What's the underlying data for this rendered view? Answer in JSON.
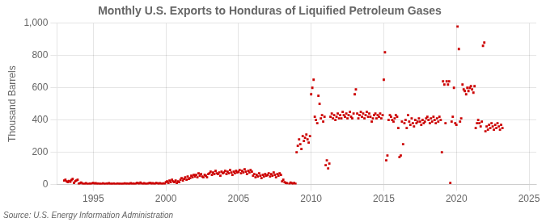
{
  "chart_data": {
    "type": "scatter",
    "title": "Monthly U.S. Exports to Honduras of Liquified Petroleum Gases",
    "ylabel": "Thousand Barrels",
    "source": "Source: U.S. Energy Information Administration",
    "xlim": [
      1992.5,
      2025.5
    ],
    "ylim": [
      0,
      1000
    ],
    "xticks": [
      1995,
      2000,
      2005,
      2010,
      2015,
      2020,
      2025
    ],
    "yticks": [
      0,
      200,
      400,
      600,
      800,
      {
        "value": 1000,
        "label": "1,000"
      }
    ],
    "grid": true,
    "color": "#cc0000",
    "marker": "square",
    "x": [
      1993.0,
      1993.08,
      1993.17,
      1993.25,
      1993.33,
      1993.42,
      1993.5,
      1993.58,
      1993.67,
      1993.75,
      1993.83,
      1993.92,
      1994.0,
      1994.08,
      1994.17,
      1994.25,
      1994.33,
      1994.42,
      1994.5,
      1994.58,
      1994.67,
      1994.75,
      1994.83,
      1994.92,
      1995.0,
      1995.08,
      1995.17,
      1995.25,
      1995.33,
      1995.42,
      1995.5,
      1995.58,
      1995.67,
      1995.75,
      1995.83,
      1995.92,
      1996.0,
      1996.08,
      1996.17,
      1996.25,
      1996.33,
      1996.42,
      1996.5,
      1996.58,
      1996.67,
      1996.75,
      1996.83,
      1996.92,
      1997.0,
      1997.08,
      1997.17,
      1997.25,
      1997.33,
      1997.42,
      1997.5,
      1997.58,
      1997.67,
      1997.75,
      1997.83,
      1997.92,
      1998.0,
      1998.08,
      1998.17,
      1998.25,
      1998.33,
      1998.42,
      1998.5,
      1998.58,
      1998.67,
      1998.75,
      1998.83,
      1998.92,
      1999.0,
      1999.08,
      1999.17,
      1999.25,
      1999.33,
      1999.42,
      1999.5,
      1999.58,
      1999.67,
      1999.75,
      1999.83,
      1999.92,
      2000.0,
      2000.08,
      2000.17,
      2000.25,
      2000.33,
      2000.42,
      2000.5,
      2000.58,
      2000.67,
      2000.75,
      2000.83,
      2000.92,
      2001.0,
      2001.08,
      2001.17,
      2001.25,
      2001.33,
      2001.42,
      2001.5,
      2001.58,
      2001.67,
      2001.75,
      2001.83,
      2001.92,
      2002.0,
      2002.08,
      2002.17,
      2002.25,
      2002.33,
      2002.42,
      2002.5,
      2002.58,
      2002.67,
      2002.75,
      2002.83,
      2002.92,
      2003.0,
      2003.08,
      2003.17,
      2003.25,
      2003.33,
      2003.42,
      2003.5,
      2003.58,
      2003.67,
      2003.75,
      2003.83,
      2003.92,
      2004.0,
      2004.08,
      2004.17,
      2004.25,
      2004.33,
      2004.42,
      2004.5,
      2004.58,
      2004.67,
      2004.75,
      2004.83,
      2004.92,
      2005.0,
      2005.08,
      2005.17,
      2005.25,
      2005.33,
      2005.42,
      2005.5,
      2005.58,
      2005.67,
      2005.75,
      2005.83,
      2005.92,
      2006.0,
      2006.08,
      2006.17,
      2006.25,
      2006.33,
      2006.42,
      2006.5,
      2006.58,
      2006.67,
      2006.75,
      2006.83,
      2006.92,
      2007.0,
      2007.08,
      2007.17,
      2007.25,
      2007.33,
      2007.42,
      2007.5,
      2007.58,
      2007.67,
      2007.75,
      2007.83,
      2007.92,
      2008.0,
      2008.08,
      2008.17,
      2008.25,
      2008.33,
      2008.5,
      2008.58,
      2008.67,
      2008.75,
      2008.83,
      2008.92,
      2009.0,
      2009.08,
      2009.17,
      2009.25,
      2009.33,
      2009.42,
      2009.5,
      2009.58,
      2009.67,
      2009.75,
      2009.83,
      2009.92,
      2010.0,
      2010.08,
      2010.17,
      2010.25,
      2010.33,
      2010.42,
      2010.5,
      2010.58,
      2010.67,
      2010.75,
      2010.83,
      2010.92,
      2011.0,
      2011.08,
      2011.17,
      2011.25,
      2011.33,
      2011.42,
      2011.5,
      2011.58,
      2011.67,
      2011.75,
      2011.83,
      2011.92,
      2012.0,
      2012.08,
      2012.17,
      2012.25,
      2012.33,
      2012.42,
      2012.5,
      2012.58,
      2012.67,
      2012.75,
      2012.83,
      2012.92,
      2013.0,
      2013.08,
      2013.17,
      2013.25,
      2013.33,
      2013.42,
      2013.5,
      2013.58,
      2013.67,
      2013.75,
      2013.83,
      2013.92,
      2014.0,
      2014.08,
      2014.17,
      2014.25,
      2014.33,
      2014.42,
      2014.5,
      2014.58,
      2014.67,
      2014.75,
      2014.83,
      2014.92,
      2015.0,
      2015.08,
      2015.17,
      2015.25,
      2015.33,
      2015.42,
      2015.5,
      2015.58,
      2015.67,
      2015.75,
      2015.83,
      2015.92,
      2016.0,
      2016.08,
      2016.17,
      2016.25,
      2016.33,
      2016.42,
      2016.5,
      2016.58,
      2016.67,
      2016.75,
      2016.83,
      2016.92,
      2017.0,
      2017.08,
      2017.17,
      2017.25,
      2017.33,
      2017.42,
      2017.5,
      2017.58,
      2017.67,
      2017.75,
      2017.83,
      2017.92,
      2018.0,
      2018.08,
      2018.17,
      2018.25,
      2018.33,
      2018.42,
      2018.5,
      2018.58,
      2018.67,
      2018.75,
      2018.83,
      2018.92,
      2019.0,
      2019.08,
      2019.17,
      2019.25,
      2019.33,
      2019.42,
      2019.5,
      2019.58,
      2019.67,
      2019.75,
      2019.83,
      2019.92,
      2020.0,
      2020.08,
      2020.17,
      2020.25,
      2020.33,
      2020.42,
      2020.5,
      2020.58,
      2020.67,
      2020.75,
      2020.83,
      2020.92,
      2021.0,
      2021.08,
      2021.17,
      2021.25,
      2021.33,
      2021.42,
      2021.5,
      2021.58,
      2021.67,
      2021.75,
      2021.83,
      2021.92,
      2022.0,
      2022.08,
      2022.17,
      2022.25,
      2022.33,
      2022.42,
      2022.5,
      2022.58,
      2022.67,
      2022.75,
      2022.83,
      2022.92,
      2023.0,
      2023.08,
      2023.17
    ],
    "values": [
      25,
      30,
      20,
      15,
      22,
      18,
      28,
      35,
      10,
      20,
      25,
      30,
      5,
      8,
      12,
      6,
      3,
      5,
      8,
      4,
      2,
      6,
      4,
      7,
      10,
      5,
      8,
      3,
      6,
      4,
      5,
      2,
      7,
      4,
      3,
      6,
      5,
      8,
      3,
      5,
      4,
      6,
      2,
      4,
      6,
      3,
      5,
      4,
      3,
      5,
      7,
      4,
      6,
      3,
      5,
      8,
      4,
      6,
      3,
      5,
      10,
      8,
      5,
      12,
      6,
      4,
      8,
      5,
      3,
      6,
      8,
      10,
      5,
      8,
      6,
      4,
      10,
      7,
      5,
      8,
      6,
      4,
      7,
      5,
      15,
      20,
      10,
      25,
      15,
      30,
      20,
      15,
      25,
      10,
      20,
      15,
      30,
      40,
      25,
      35,
      45,
      30,
      50,
      35,
      40,
      55,
      45,
      60,
      50,
      60,
      45,
      70,
      55,
      65,
      50,
      45,
      60,
      55,
      45,
      65,
      70,
      80,
      60,
      75,
      65,
      85,
      70,
      65,
      75,
      55,
      80,
      70,
      75,
      85,
      65,
      80,
      70,
      90,
      75,
      60,
      80,
      70,
      85,
      75,
      80,
      90,
      70,
      85,
      75,
      95,
      80,
      65,
      85,
      75,
      90,
      80,
      55,
      65,
      45,
      60,
      50,
      70,
      55,
      40,
      60,
      50,
      65,
      55,
      60,
      70,
      50,
      65,
      55,
      75,
      60,
      45,
      65,
      55,
      70,
      60,
      20,
      30,
      15,
      10,
      8,
      5,
      12,
      8,
      5,
      10,
      5,
      200,
      240,
      280,
      250,
      220,
      300,
      270,
      290,
      310,
      280,
      260,
      300,
      560,
      600,
      650,
      420,
      400,
      380,
      550,
      500,
      410,
      430,
      390,
      420,
      120,
      150,
      100,
      130,
      420,
      440,
      410,
      430,
      400,
      420,
      440,
      410,
      430,
      410,
      450,
      430,
      420,
      440,
      410,
      430,
      450,
      420,
      410,
      440,
      560,
      590,
      440,
      410,
      430,
      450,
      420,
      440,
      410,
      430,
      450,
      420,
      440,
      420,
      390,
      410,
      430,
      440,
      410,
      430,
      420,
      440,
      410,
      430,
      650,
      820,
      150,
      180,
      400,
      430,
      420,
      400,
      390,
      410,
      430,
      420,
      350,
      170,
      180,
      390,
      250,
      380,
      400,
      350,
      430,
      390,
      370,
      410,
      380,
      360,
      400,
      380,
      390,
      410,
      390,
      370,
      400,
      380,
      390,
      410,
      420,
      400,
      380,
      410,
      390,
      420,
      400,
      380,
      410,
      390,
      420,
      400,
      200,
      640,
      620,
      380,
      640,
      620,
      640,
      10,
      390,
      420,
      600,
      380,
      370,
      980,
      840,
      390,
      410,
      620,
      590,
      580,
      560,
      600,
      580,
      600,
      610,
      590,
      570,
      610,
      350,
      380,
      400,
      380,
      360,
      390,
      860,
      880,
      330,
      360,
      340,
      370,
      350,
      380,
      360,
      340,
      370,
      350,
      380,
      360,
      340,
      370,
      350
    ]
  }
}
